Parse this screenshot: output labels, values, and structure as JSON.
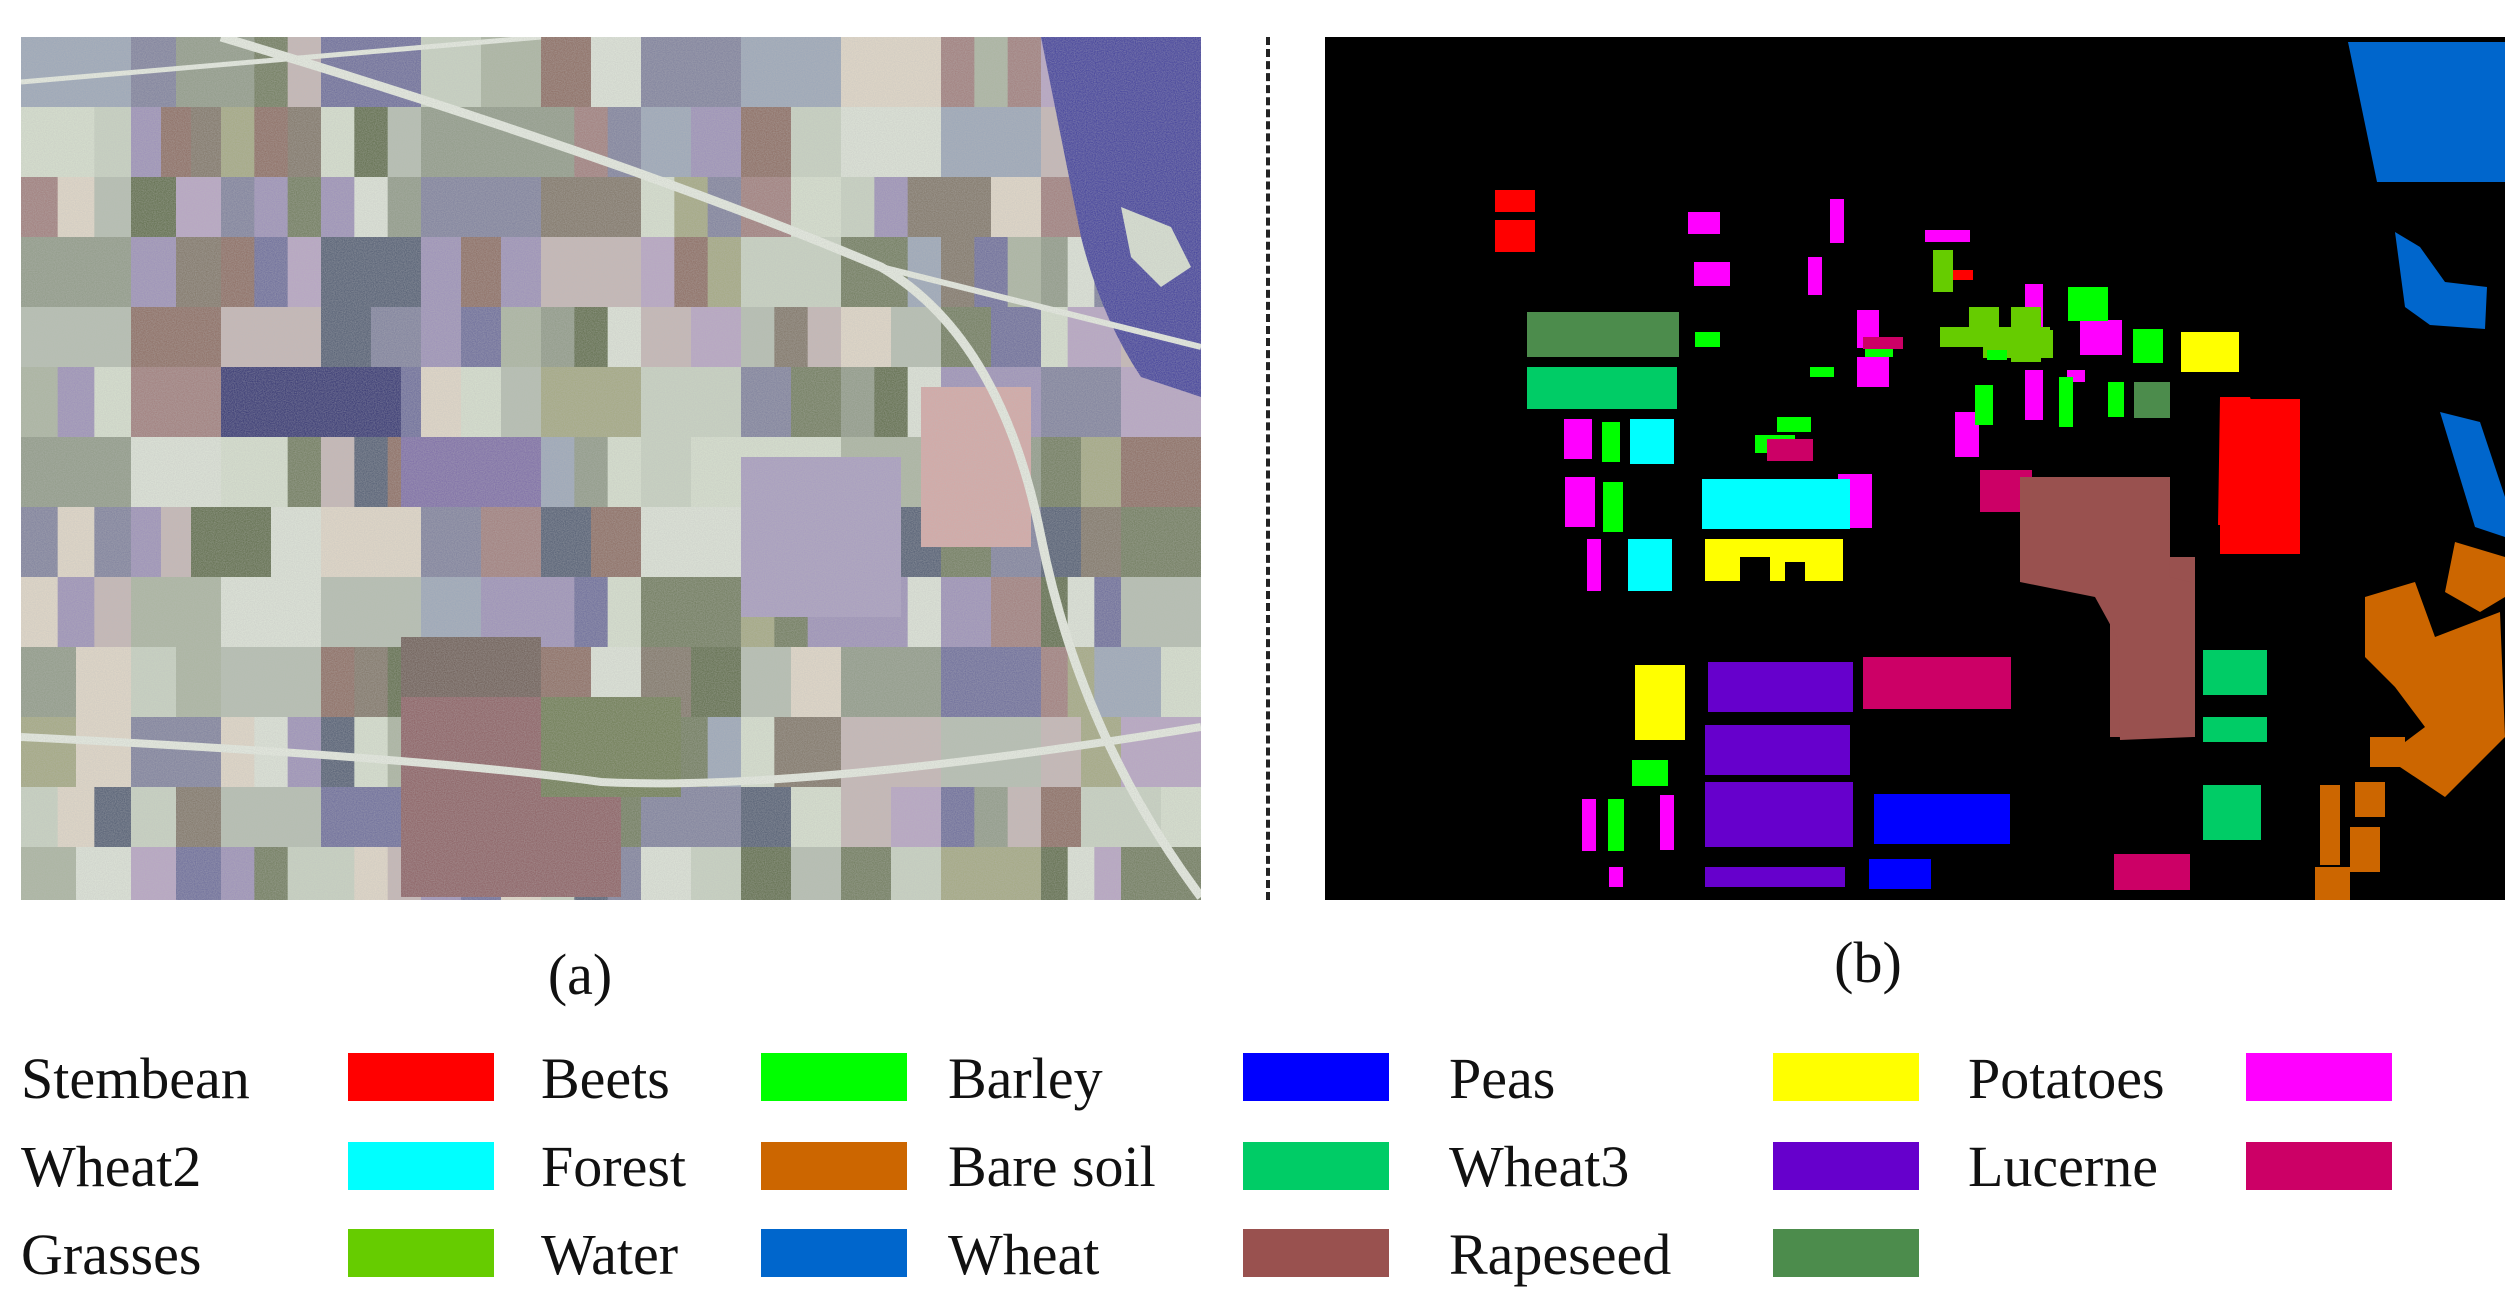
{
  "captions": {
    "a": "(a)",
    "b": "(b)"
  },
  "legend": [
    {
      "label": "Stembean",
      "color": "#ff0000"
    },
    {
      "label": "Beets",
      "color": "#00ff00"
    },
    {
      "label": "Barley",
      "color": "#0000ff"
    },
    {
      "label": "Peas",
      "color": "#ffff00"
    },
    {
      "label": "Potatoes",
      "color": "#ff00ff"
    },
    {
      "label": "Wheat2",
      "color": "#00ffff"
    },
    {
      "label": "Forest",
      "color": "#cc6600"
    },
    {
      "label": "Bare soil",
      "color": "#00cc66"
    },
    {
      "label": "Wheat3",
      "color": "#6600cc"
    },
    {
      "label": "Lucerne",
      "color": "#cc0066"
    },
    {
      "label": "Grasses",
      "color": "#66cc00"
    },
    {
      "label": "Water",
      "color": "#0066cc"
    },
    {
      "label": "Wheat",
      "color": "#99514f"
    },
    {
      "label": "Rapeseed",
      "color": "#4c8c4c"
    }
  ]
}
